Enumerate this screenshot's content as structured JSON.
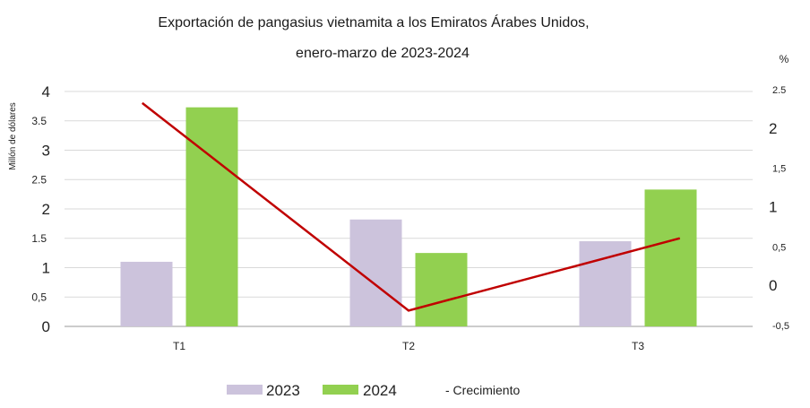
{
  "chart_data": {
    "type": "bar",
    "title": "Exportación de pangasius vietnamita a los Emiratos Árabes Unidos,",
    "subtitle": "enero-marzo de 2023-2024",
    "ylabel": "Millón de dólares",
    "y2label": "%",
    "categories": [
      "T1",
      "T2",
      "T3"
    ],
    "ylim": [
      0,
      4
    ],
    "yticks": [
      "0",
      "0,5",
      "1",
      "1.5",
      "2",
      "2.5",
      "3",
      "3.5",
      "4"
    ],
    "y2lim": [
      -0.5,
      2.5
    ],
    "y2ticks": [
      "-0,5",
      "0",
      "0,5",
      "1",
      "1,5",
      "2",
      "2.5"
    ],
    "series": [
      {
        "name": "2023",
        "type": "bar",
        "axis": "left",
        "color": "#ccc3dc",
        "values": [
          1.1,
          1.82,
          1.45
        ]
      },
      {
        "name": "2024",
        "type": "bar",
        "axis": "left",
        "color": "#92d050",
        "values": [
          3.73,
          1.25,
          2.33
        ]
      },
      {
        "name": "- Crecimiento",
        "type": "line",
        "axis": "right",
        "color": "#c00000",
        "values": [
          2.33,
          -0.31,
          0.61
        ]
      }
    ],
    "grid": true,
    "legend": "bottom-center"
  }
}
